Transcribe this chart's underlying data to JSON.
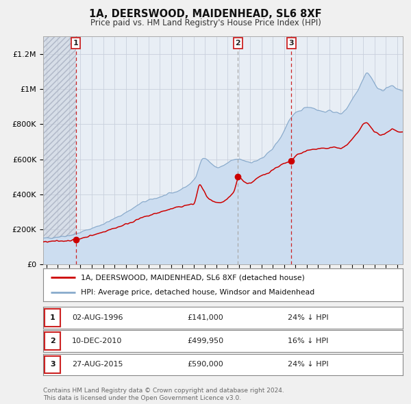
{
  "title": "1A, DEERSWOOD, MAIDENHEAD, SL6 8XF",
  "subtitle": "Price paid vs. HM Land Registry's House Price Index (HPI)",
  "ylim": [
    0,
    1300000
  ],
  "xlim_start": 1993.7,
  "xlim_end": 2025.5,
  "yticks": [
    0,
    200000,
    400000,
    600000,
    800000,
    1000000,
    1200000
  ],
  "ytick_labels": [
    "£0",
    "£200K",
    "£400K",
    "£600K",
    "£800K",
    "£1M",
    "£1.2M"
  ],
  "sale_color": "#cc0000",
  "hpi_fill_color": "#ccddf0",
  "hpi_line_color": "#88aacc",
  "marker_color": "#cc0000",
  "annotation_box_color": "#cc2222",
  "dashed_line_color_red": "#cc2222",
  "dashed_line_color_grey": "#aaaaaa",
  "sale_transactions": [
    {
      "year": 1996.58,
      "price": 141000,
      "label": "1",
      "dash": "red"
    },
    {
      "year": 2010.92,
      "price": 499950,
      "label": "2",
      "dash": "grey"
    },
    {
      "year": 2015.65,
      "price": 590000,
      "label": "3",
      "dash": "red"
    }
  ],
  "legend_label_sale": "1A, DEERSWOOD, MAIDENHEAD, SL6 8XF (detached house)",
  "legend_label_hpi": "HPI: Average price, detached house, Windsor and Maidenhead",
  "table_rows": [
    {
      "num": "1",
      "date": "02-AUG-1996",
      "price": "£141,000",
      "hpi": "24% ↓ HPI"
    },
    {
      "num": "2",
      "date": "10-DEC-2010",
      "price": "£499,950",
      "hpi": "16% ↓ HPI"
    },
    {
      "num": "3",
      "date": "27-AUG-2015",
      "price": "£590,000",
      "hpi": "24% ↓ HPI"
    }
  ],
  "footer": "Contains HM Land Registry data © Crown copyright and database right 2024.\nThis data is licensed under the Open Government Licence v3.0.",
  "background_color": "#f0f0f0",
  "plot_bg_color": "#e8eef5",
  "grid_color": "#c8d0dc",
  "hatch_region_end": 1996.58
}
